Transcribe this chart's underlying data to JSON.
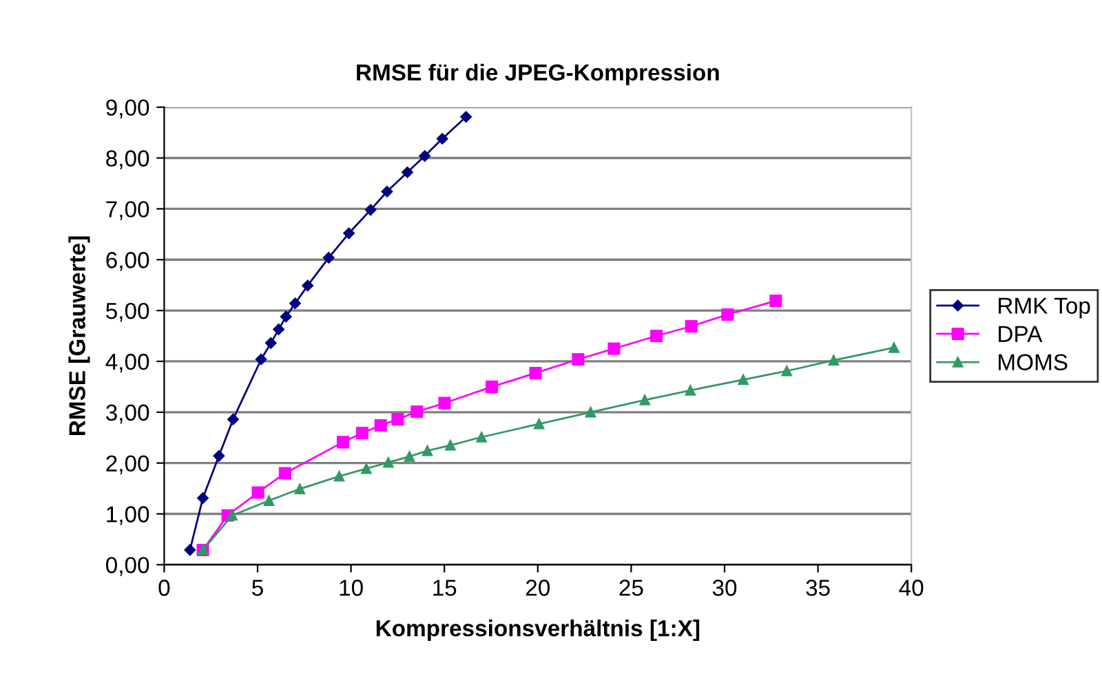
{
  "chart_data": {
    "type": "line",
    "title": "RMSE für die JPEG-Kompression",
    "xlabel": "Kompressionsverhältnis [1:X]",
    "ylabel": "RMSE [Grauwerte]",
    "xlim": [
      0,
      40
    ],
    "xticks": [
      0,
      5,
      10,
      15,
      20,
      25,
      30,
      35,
      40
    ],
    "ylim": [
      0,
      9
    ],
    "yticks": [
      {
        "value": 0,
        "label": "0,00"
      },
      {
        "value": 1,
        "label": "1,00"
      },
      {
        "value": 2,
        "label": "2,00"
      },
      {
        "value": 3,
        "label": "3,00"
      },
      {
        "value": 4,
        "label": "4,00"
      },
      {
        "value": 5,
        "label": "5,00"
      },
      {
        "value": 6,
        "label": "6,00"
      },
      {
        "value": 7,
        "label": "7,00"
      },
      {
        "value": 8,
        "label": "8,00"
      },
      {
        "value": 9,
        "label": "9,00"
      }
    ],
    "grid": "y",
    "legend": "right",
    "series": [
      {
        "name": "RMK Top",
        "color": "#000080",
        "marker": "diamond",
        "x": [
          1.38,
          2.07,
          2.93,
          3.69,
          5.19,
          5.71,
          6.13,
          6.52,
          7.01,
          7.68,
          8.81,
          9.89,
          11.05,
          11.93,
          13.02,
          13.95,
          14.89,
          16.16
        ],
        "values": [
          0.29,
          1.31,
          2.14,
          2.86,
          4.04,
          4.36,
          4.63,
          4.88,
          5.14,
          5.49,
          6.04,
          6.52,
          6.98,
          7.34,
          7.72,
          8.04,
          8.38,
          8.81
        ]
      },
      {
        "name": "DPA",
        "color": "#ff00ff",
        "marker": "square",
        "x": [
          2.07,
          3.4,
          5.02,
          6.47,
          9.57,
          10.6,
          11.59,
          12.5,
          13.53,
          15.01,
          17.54,
          19.88,
          22.16,
          24.08,
          26.35,
          28.22,
          30.16,
          32.74
        ],
        "values": [
          0.29,
          0.97,
          1.42,
          1.8,
          2.41,
          2.59,
          2.74,
          2.86,
          3.01,
          3.18,
          3.5,
          3.77,
          4.04,
          4.25,
          4.5,
          4.69,
          4.92,
          5.19
        ]
      },
      {
        "name": "MOMS",
        "color": "#339966",
        "marker": "triangle",
        "x": [
          2.07,
          3.64,
          5.61,
          7.26,
          9.37,
          10.82,
          12.0,
          13.13,
          14.09,
          15.32,
          16.99,
          20.07,
          22.83,
          25.73,
          28.17,
          31.0,
          33.33,
          35.84,
          39.07
        ],
        "values": [
          0.29,
          0.97,
          1.26,
          1.49,
          1.74,
          1.89,
          2.01,
          2.13,
          2.24,
          2.35,
          2.51,
          2.77,
          3.0,
          3.24,
          3.43,
          3.64,
          3.81,
          4.02,
          4.27
        ]
      }
    ]
  }
}
